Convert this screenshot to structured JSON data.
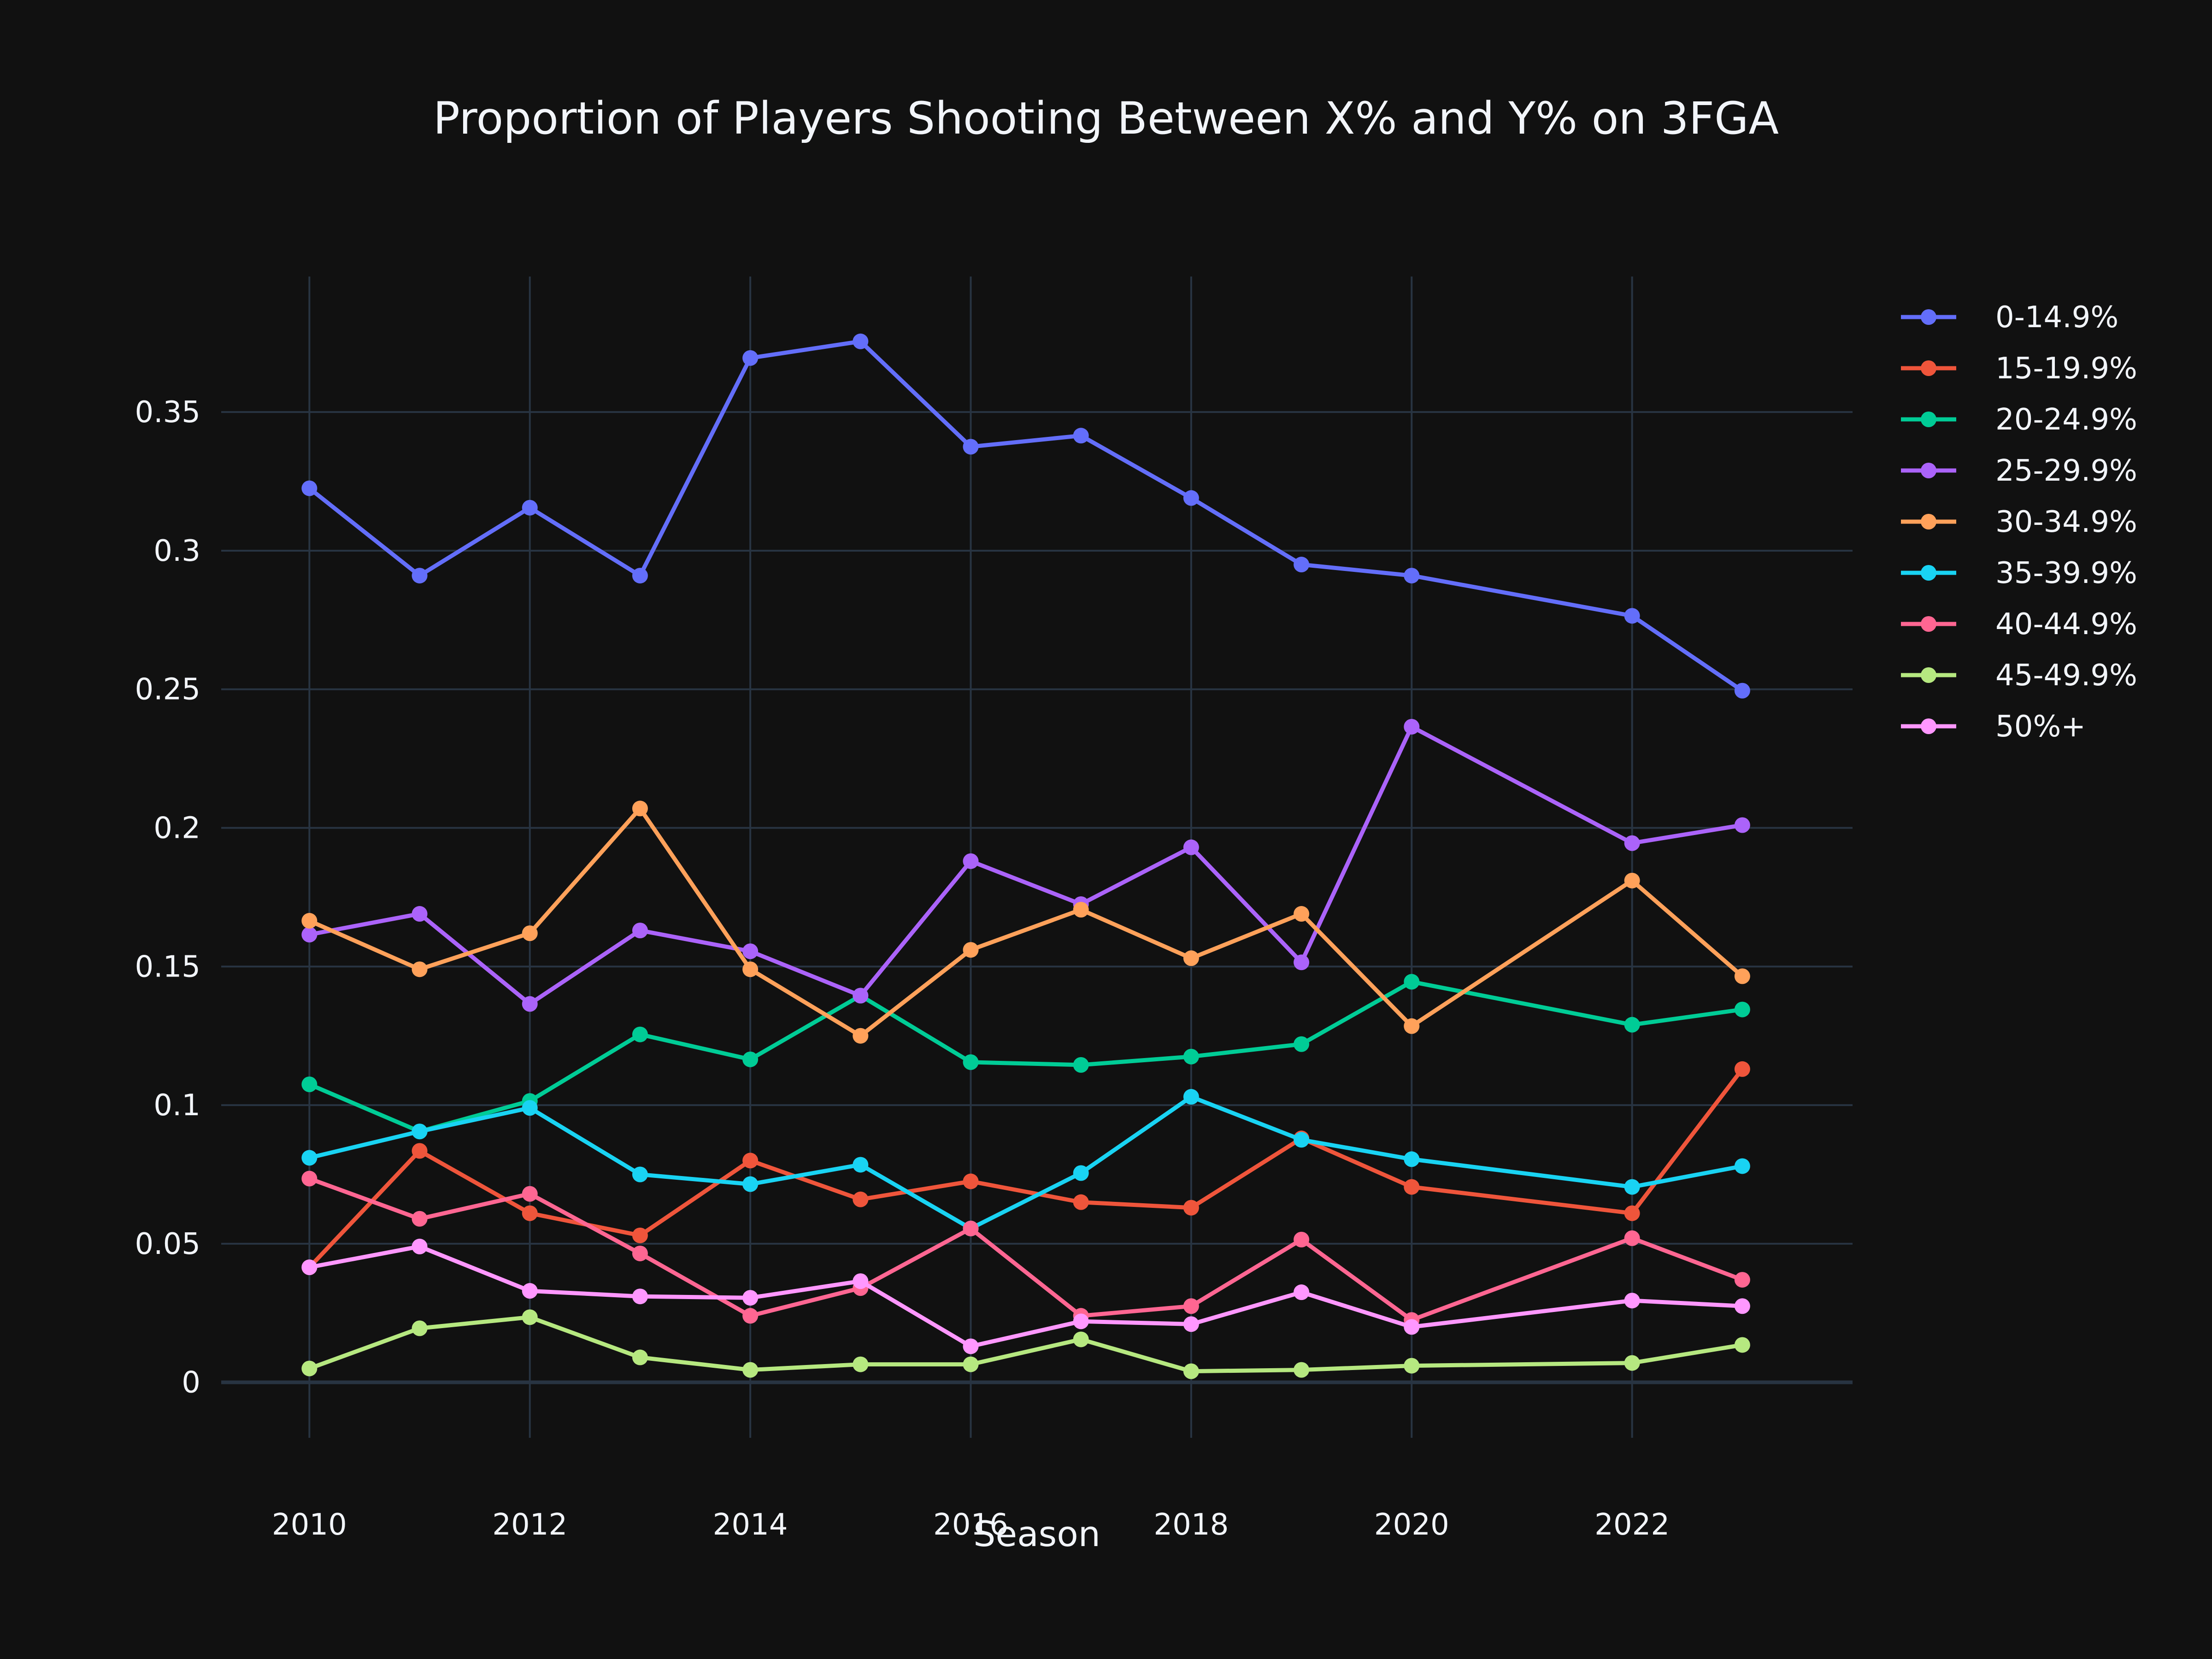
{
  "chart_data": {
    "type": "line",
    "title": "Proportion of Players Shooting Between X% and Y% on 3FGA",
    "xlabel": "Season",
    "ylabel": "",
    "xlim": [
      2009.2,
      2024.0
    ],
    "ylim": [
      -0.02,
      0.3989
    ],
    "xticks": [
      2010,
      2012,
      2014,
      2016,
      2018,
      2020,
      2022
    ],
    "xtick_labels": [
      "2010",
      "2012",
      "2014",
      "2016",
      "2018",
      "2020",
      "2022"
    ],
    "yticks": [
      0,
      0.05,
      0.1,
      0.15,
      0.2,
      0.25,
      0.3,
      0.35
    ],
    "ytick_labels": [
      "0",
      "0.05",
      "0.1",
      "0.15",
      "0.2",
      "0.25",
      "0.3",
      "0.35"
    ],
    "grid": true,
    "legend_position": "top-right",
    "x": [
      2010,
      2011,
      2012,
      2013,
      2014,
      2015,
      2016,
      2017,
      2018,
      2019,
      2020,
      2022,
      2023
    ],
    "series": [
      {
        "name": "0-14.9%",
        "color": "#636efa",
        "values": [
          0.3225,
          0.291,
          0.3155,
          0.291,
          0.3695,
          0.3755,
          0.3375,
          0.3415,
          0.319,
          0.295,
          0.291,
          0.2765,
          0.2495
        ]
      },
      {
        "name": "15-19.9%",
        "color": "#ef553b",
        "values": [
          0.0415,
          0.0835,
          0.061,
          0.053,
          0.08,
          0.066,
          0.0725,
          0.065,
          0.063,
          0.088,
          0.0705,
          0.061,
          0.113
        ]
      },
      {
        "name": "20-24.9%",
        "color": "#00cc96",
        "values": [
          0.1075,
          0.0905,
          0.1015,
          0.1255,
          0.1165,
          0.1395,
          0.1155,
          0.1145,
          0.1175,
          0.122,
          0.1445,
          0.129,
          0.1345
        ]
      },
      {
        "name": "25-29.9%",
        "color": "#ab63fa",
        "values": [
          0.1615,
          0.169,
          0.1365,
          0.163,
          0.1555,
          0.1395,
          0.188,
          0.1725,
          0.193,
          0.1515,
          0.2365,
          0.1945,
          0.201
        ]
      },
      {
        "name": "30-34.9%",
        "color": "#ffa15a",
        "values": [
          0.1665,
          0.149,
          0.162,
          0.207,
          0.149,
          0.125,
          0.156,
          0.1705,
          0.153,
          0.169,
          0.1285,
          0.181,
          0.1465
        ]
      },
      {
        "name": "35-39.9%",
        "color": "#19d3f3",
        "values": [
          0.081,
          0.0905,
          0.099,
          0.075,
          0.0715,
          0.0785,
          0.0555,
          0.0755,
          0.103,
          0.0875,
          0.0805,
          0.0705,
          0.078
        ]
      },
      {
        "name": "40-44.9%",
        "color": "#ff6692",
        "values": [
          0.0735,
          0.059,
          0.068,
          0.0465,
          0.024,
          0.034,
          0.0555,
          0.024,
          0.0275,
          0.0515,
          0.0225,
          0.052,
          0.037
        ]
      },
      {
        "name": "45-49.9%",
        "color": "#b6e880",
        "values": [
          0.005,
          0.0195,
          0.0235,
          0.009,
          0.0045,
          0.0065,
          0.0065,
          0.0155,
          0.004,
          0.0045,
          0.006,
          0.007,
          0.0135
        ]
      },
      {
        "name": "50%+",
        "color": "#ff97ff",
        "values": [
          0.0415,
          0.049,
          0.033,
          0.031,
          0.0305,
          0.0365,
          0.013,
          0.022,
          0.021,
          0.0325,
          0.02,
          0.0295,
          0.0275
        ]
      }
    ]
  }
}
